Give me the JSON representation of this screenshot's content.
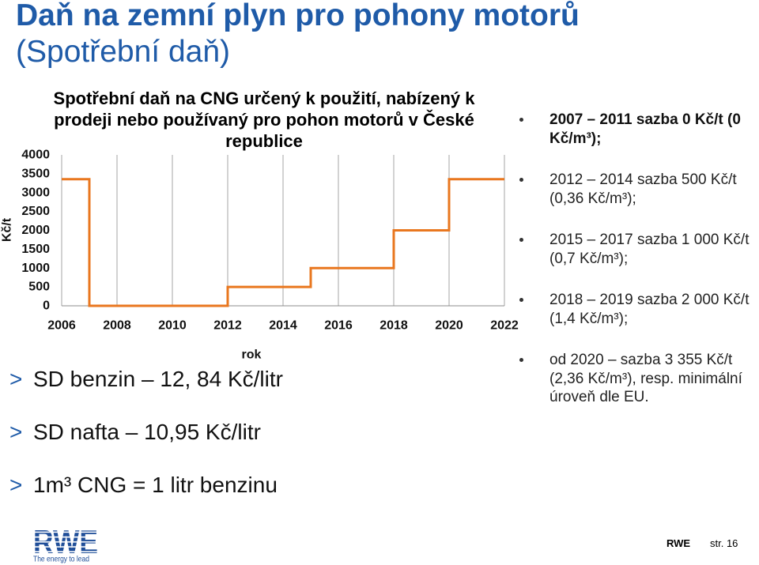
{
  "slide": {
    "title_line1": "Daň na zemní plyn pro pohony motorů",
    "title_line2": "(Spotřební daň)"
  },
  "colors": {
    "title_blue": "#1f5ba8",
    "logo_blue": "#1f4e99"
  },
  "chart_data": {
    "type": "line",
    "interpolation": "step-after",
    "title": "Spotřební daň na CNG určený k použití, nabízený k\nprodeji nebo používaný pro pohon motorů v České\nrepublice",
    "xlabel": "rok",
    "ylabel": "Kč/t",
    "xlim": [
      2006,
      2022
    ],
    "ylim": [
      0,
      4000
    ],
    "x_ticks": [
      2006,
      2008,
      2010,
      2012,
      2014,
      2016,
      2018,
      2020,
      2022
    ],
    "y_ticks": [
      0,
      500,
      1000,
      1500,
      2000,
      2500,
      3000,
      3500,
      4000
    ],
    "grid": "vertical",
    "series": [
      {
        "x": [
          2006,
          2007,
          2012,
          2015,
          2018,
          2020,
          2022
        ],
        "y": [
          3355,
          0,
          500,
          1000,
          2000,
          3355,
          3355
        ],
        "color": "#e9771f"
      }
    ]
  },
  "rate_list": [
    "2007 – 2011 sazba 0 Kč/t (0\nKč/m³);",
    "2012 – 2014 sazba 500 Kč/t\n(0,36 Kč/m³);",
    "2015 – 2017 sazba 1 000 Kč/t\n(0,7 Kč/m³);",
    "2018 – 2019 sazba 2 000 Kč/t\n(1,4 Kč/m³);",
    "od 2020 – sazba 3 355 Kč/t\n(2,36 Kč/m³), resp. minimální\núroveň dle EU."
  ],
  "key_facts": {
    "marker": ">",
    "items": [
      "SD benzin – 12, 84 Kč/litr",
      "SD nafta – 10,95 Kč/litr",
      "1m³ CNG = 1 litr benzinu"
    ]
  },
  "logo": {
    "wordmark": "RWE",
    "tagline": "The energy to lead"
  },
  "footer": {
    "company": "RWE",
    "page": "str. 16"
  }
}
